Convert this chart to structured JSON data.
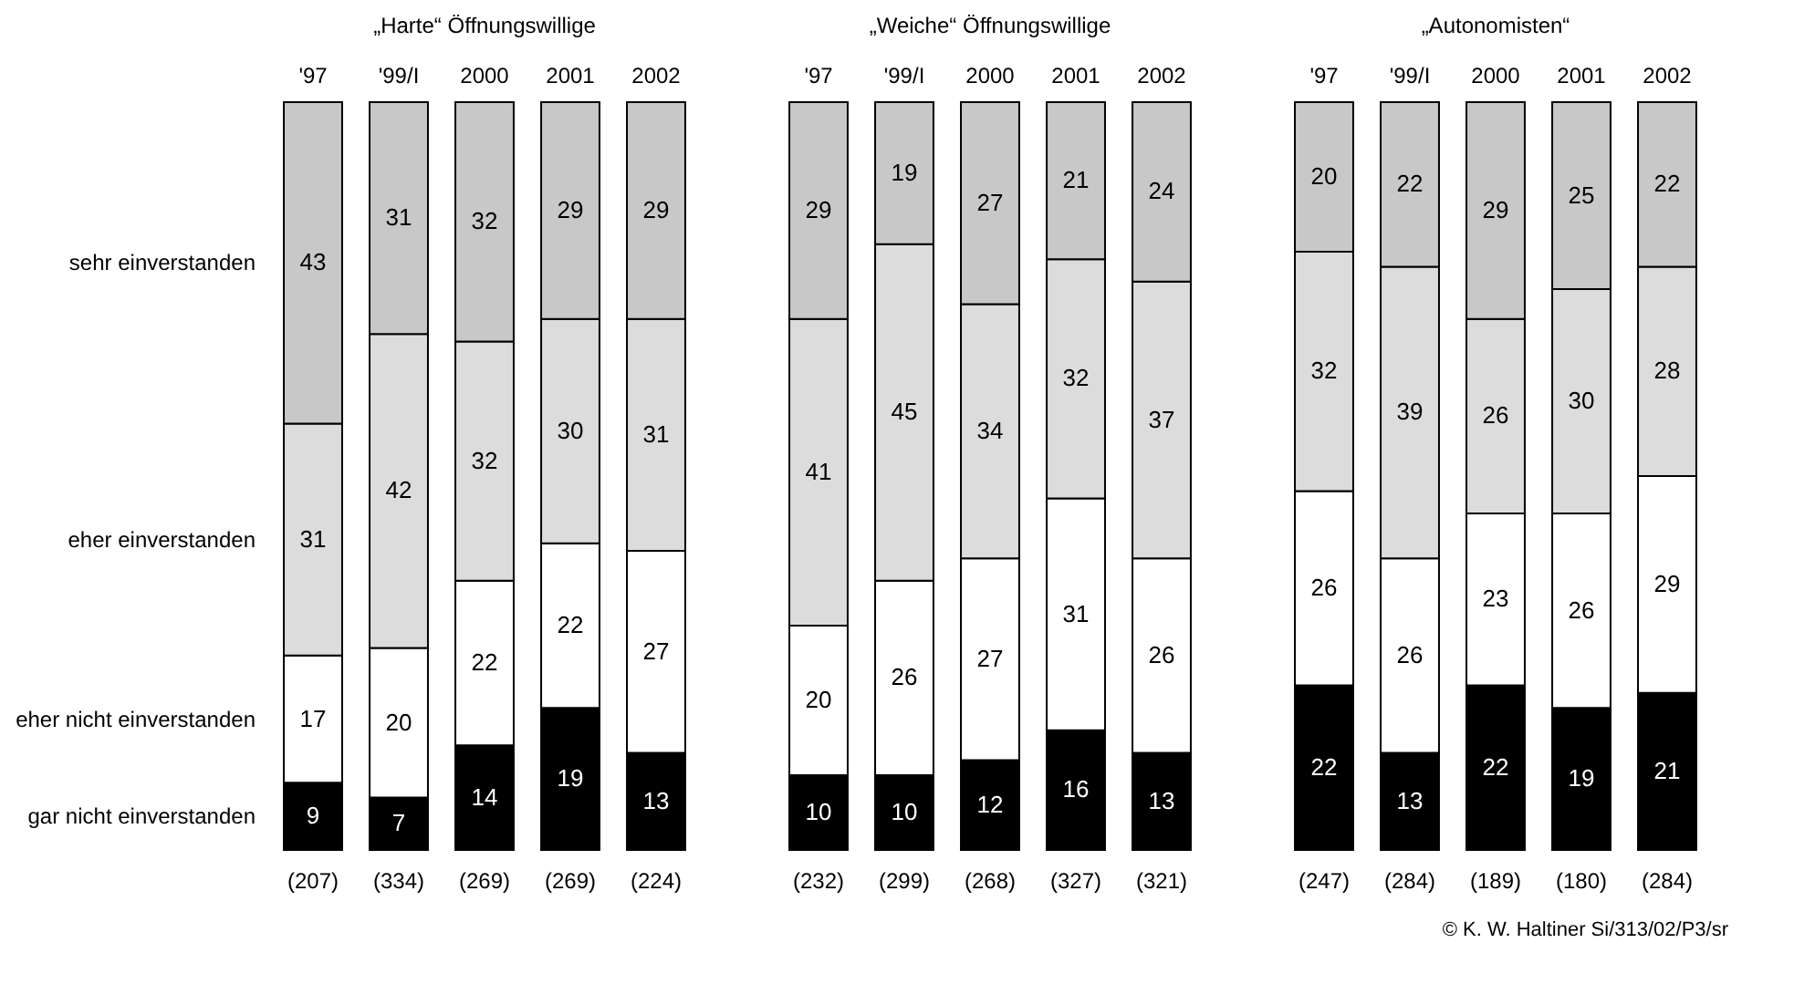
{
  "chart_data": [
    {
      "type": "bar",
      "title": "„Harte“ Öffnungswillige",
      "stacked": true,
      "data_labels": true,
      "categories": [
        "'97",
        "'99/I",
        "2000",
        "2001",
        "2002"
      ],
      "series": [
        {
          "name": "gar nicht einverstanden",
          "color": "#000000",
          "values": [
            9,
            7,
            14,
            19,
            13
          ]
        },
        {
          "name": "eher nicht einverstanden",
          "color": "#ffffff",
          "values": [
            17,
            20,
            22,
            22,
            27
          ]
        },
        {
          "name": "eher einverstanden",
          "color": "#dcdcdc",
          "values": [
            31,
            42,
            32,
            30,
            31
          ]
        },
        {
          "name": "sehr einverstanden",
          "color": "#c8c8c8",
          "values": [
            43,
            31,
            32,
            29,
            29
          ]
        }
      ],
      "annotations": [
        "(207)",
        "(334)",
        "(269)",
        "(269)",
        "(224)"
      ]
    },
    {
      "type": "bar",
      "title": "„Weiche“ Öffnungswillige",
      "stacked": true,
      "data_labels": true,
      "categories": [
        "'97",
        "'99/I",
        "2000",
        "2001",
        "2002"
      ],
      "series": [
        {
          "color": "#000000",
          "values": [
            10,
            10,
            12,
            16,
            13
          ]
        },
        {
          "color": "#ffffff",
          "values": [
            20,
            26,
            27,
            31,
            26
          ]
        },
        {
          "color": "#dcdcdc",
          "values": [
            41,
            45,
            34,
            32,
            37
          ]
        },
        {
          "color": "#c8c8c8",
          "values": [
            29,
            19,
            27,
            21,
            24
          ]
        }
      ],
      "annotations": [
        "(232)",
        "(299)",
        "(268)",
        "(327)",
        "(321)"
      ]
    },
    {
      "type": "bar",
      "title": "„Autonomisten“",
      "stacked": true,
      "data_labels": true,
      "categories": [
        "'97",
        "'99/I",
        "2000",
        "2001",
        "2002"
      ],
      "series": [
        {
          "color": "#000000",
          "values": [
            22,
            13,
            22,
            19,
            21
          ]
        },
        {
          "color": "#ffffff",
          "values": [
            26,
            26,
            23,
            26,
            29
          ]
        },
        {
          "color": "#dcdcdc",
          "values": [
            32,
            39,
            26,
            30,
            28
          ]
        },
        {
          "color": "#c8c8c8",
          "values": [
            20,
            22,
            29,
            25,
            22
          ]
        }
      ],
      "annotations": [
        "(247)",
        "(284)",
        "(189)",
        "(180)",
        "(284)",
        "© K. W. Haltiner Si/313/02/P3/sr"
      ]
    }
  ]
}
